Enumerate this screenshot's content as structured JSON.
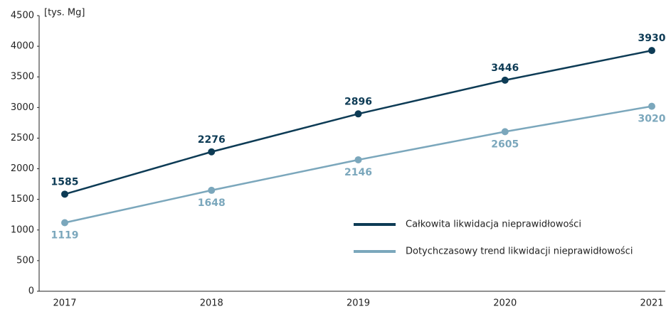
{
  "chart_data": {
    "type": "line",
    "unit_label": "[tys. Mg]",
    "categories": [
      "2017",
      "2018",
      "2019",
      "2020",
      "2021"
    ],
    "series": [
      {
        "name": "Całkowita likwidacja nieprawidłowości",
        "color": "#0d3b55",
        "values": [
          1585,
          2276,
          2896,
          3446,
          3930
        ]
      },
      {
        "name": "Dotychczasowy trend likwidacji nieprawidłowości",
        "color": "#7ba7bc",
        "values": [
          1119,
          1648,
          2146,
          2605,
          3020
        ]
      }
    ],
    "ylim": [
      0,
      4500
    ],
    "yticks": [
      0,
      500,
      1000,
      1500,
      2000,
      2500,
      3000,
      3500,
      4000,
      4500
    ],
    "grid": false,
    "legend": "lower right"
  }
}
